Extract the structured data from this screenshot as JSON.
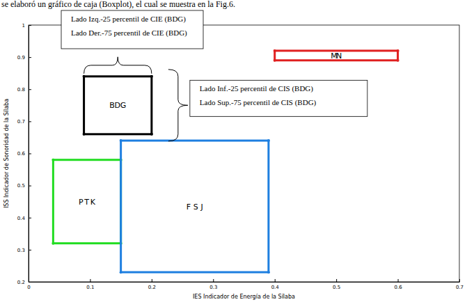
{
  "chart_data": {
    "type": "box",
    "caption": "se elaboró un gráfico de caja (Boxplot), el cual se muestra en la Fig.6.",
    "x_label": "IES Indicador de Energía de la Sílaba",
    "y_label": "ISS Indicador de Sonoridad de la Sílaba",
    "xlim": [
      0,
      0.7
    ],
    "ylim": [
      0.2,
      1
    ],
    "xticks": [
      0,
      0.1,
      0.2,
      0.3,
      0.4,
      0.5,
      0.6,
      0.7
    ],
    "yticks": [
      0.2,
      0.3,
      0.4,
      0.5,
      0.6,
      0.7,
      0.8,
      0.9,
      1
    ],
    "boxes": [
      {
        "name": "PTK",
        "color": "#22dd22",
        "x": [
          0.04,
          0.15
        ],
        "y": [
          0.32,
          0.58
        ]
      },
      {
        "name": "FSJ",
        "color": "#1e7fe0",
        "x": [
          0.15,
          0.39
        ],
        "y": [
          0.23,
          0.64
        ]
      },
      {
        "name": "BDG",
        "color": "#000000",
        "x": [
          0.09,
          0.2
        ],
        "y": [
          0.66,
          0.84
        ]
      },
      {
        "name": "MN",
        "color": "#e02020",
        "x": [
          0.4,
          0.6
        ],
        "y": [
          0.89,
          0.92
        ]
      }
    ],
    "annotations": [
      [
        "Lado Izq.-25 percentil de CIE (BDG)",
        "Lado Der.-75 percentil de CIE (BDG)"
      ],
      [
        "Lado Inf.-25 percentil de CIS (BDG)",
        "Lado Sup.-75 percentil de CIS (BDG)"
      ]
    ]
  }
}
